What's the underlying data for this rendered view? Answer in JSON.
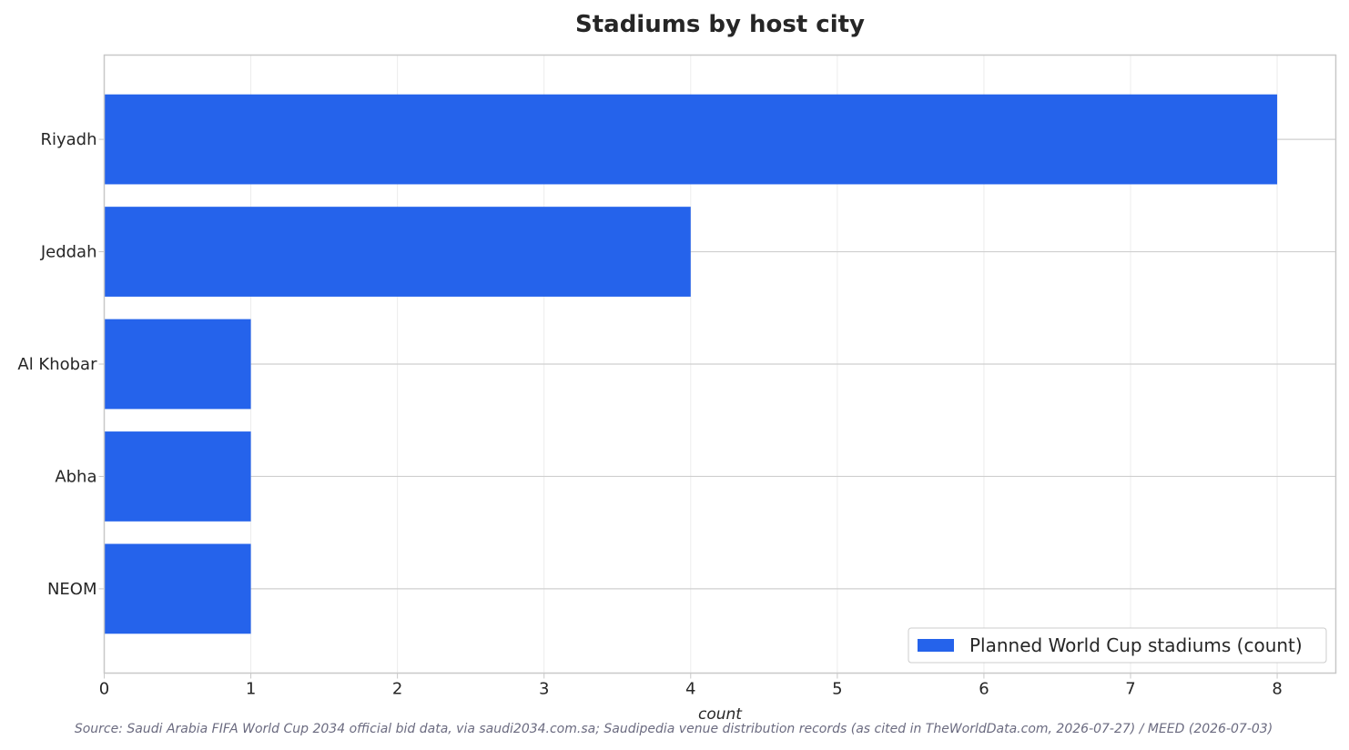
{
  "chart_data": {
    "type": "bar",
    "orientation": "horizontal",
    "title": "Stadiums by host city",
    "xlabel": "count",
    "ylabel": "",
    "categories": [
      "Riyadh",
      "Jeddah",
      "Al Khobar",
      "Abha",
      "NEOM"
    ],
    "series": [
      {
        "name": "Planned World Cup stadiums (count)",
        "values": [
          8,
          4,
          1,
          1,
          1
        ],
        "color": "#2563eb"
      }
    ],
    "xlim": [
      0,
      8.4
    ],
    "xticks": [
      "0",
      "1",
      "2",
      "3",
      "4",
      "5",
      "6",
      "7",
      "8"
    ],
    "grid": true,
    "legend_position": "bottom-right",
    "source": "Source: Saudi Arabia FIFA World Cup 2034 official bid data, via saudi2034.com.sa; Saudipedia venue distribution records (as cited in TheWorldData.com, 2026-07-27) / MEED (2026-07-03)"
  }
}
